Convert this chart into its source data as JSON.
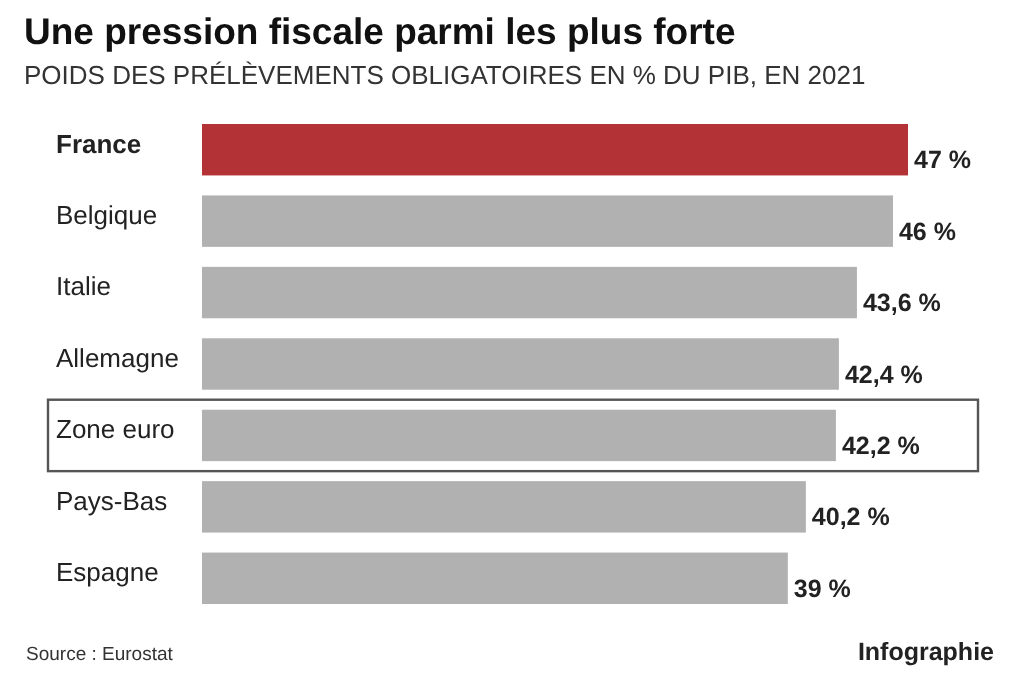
{
  "chart_data": {
    "type": "bar",
    "orientation": "horizontal",
    "title": "Une pression fiscale parmi les plus forte",
    "subtitle": "POIDS DES PRÉLÈVEMENTS OBLIGATOIRES EN % DU PIB, EN 2021",
    "categories": [
      "France",
      "Belgique",
      "Italie",
      "Allemagne",
      "Zone euro",
      "Pays-Bas",
      "Espagne"
    ],
    "values": [
      47,
      46,
      43.6,
      42.4,
      42.2,
      40.2,
      39
    ],
    "value_labels": [
      "47 %",
      "46 %",
      "43,6 %",
      "42,4 %",
      "42,2 %",
      "40,2 %",
      "39 %"
    ],
    "colors": [
      "#b33235",
      "#b1b1b2",
      "#b1b1b2",
      "#b1b1b2",
      "#b1b1b2",
      "#b1b1b2",
      "#b1b1b2"
    ],
    "annotations": [
      "Source : Eurostat",
      "Infographie"
    ]
  }
}
